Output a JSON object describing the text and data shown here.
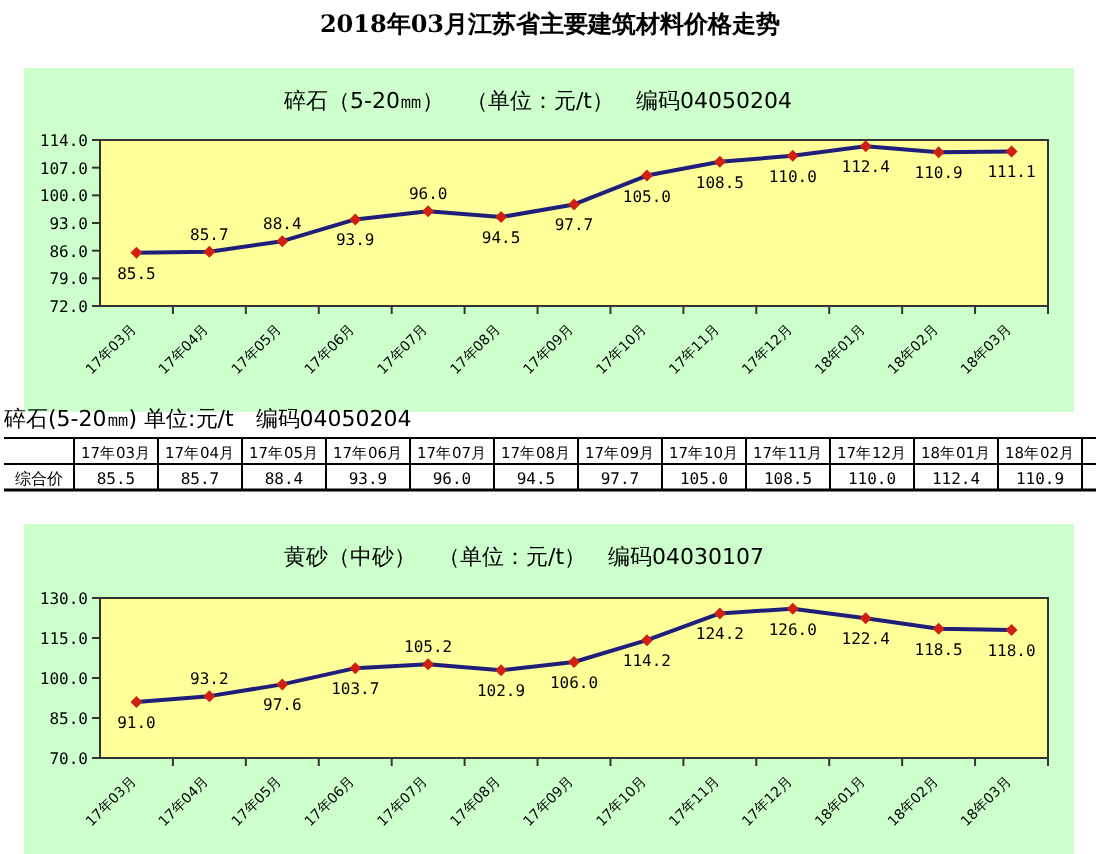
{
  "chart_data": [
    {
      "type": "line",
      "title": "2018年03月江苏省主要建筑材料价格走势",
      "subtitle": "碎石（5-20㎜）　（单位：元/t）　编码04050204",
      "categories": [
        "17年03月",
        "17年04月",
        "17年05月",
        "17年06月",
        "17年07月",
        "17年08月",
        "17年09月",
        "17年10月",
        "17年11月",
        "17年12月",
        "18年01月",
        "18年02月",
        "18年03月"
      ],
      "series": [
        {
          "color": "#1f1f7a",
          "values": [
            85.5,
            85.7,
            88.4,
            93.9,
            96.0,
            94.5,
            97.7,
            105.0,
            108.5,
            110.0,
            112.4,
            110.9,
            111.1
          ],
          "value_labels": [
            "85.5",
            "85.7",
            "88.4",
            "93.9",
            "96.0",
            "94.5",
            "97.7",
            "105.0",
            "108.5",
            "110.0",
            "112.4",
            "110.9",
            "111.1"
          ]
        }
      ],
      "marker": "diamond",
      "line_style": "solid",
      "ylim": [
        72,
        114
      ],
      "yticks": [
        {
          "value": 72,
          "label": "72.0"
        },
        {
          "value": 79,
          "label": "79.0"
        },
        {
          "value": 86,
          "label": "86.0"
        },
        {
          "value": 93,
          "label": "93.0"
        },
        {
          "value": 100,
          "label": "100.0"
        },
        {
          "value": 107,
          "label": "107.0"
        },
        {
          "value": 114,
          "label": "114.0"
        }
      ]
    },
    {
      "type": "other",
      "title": "碎石(5-20㎜) 单位:元/t　编码04050204",
      "categories": [
        "17年03月",
        "17年04月",
        "17年05月",
        "17年06月",
        "17年07月",
        "17年08月",
        "17年09月",
        "17年10月",
        "17年11月",
        "17年12月",
        "18年01月",
        "18年02月"
      ],
      "value_labels": [
        "85.5",
        "85.7",
        "88.4",
        "93.9",
        "96.0",
        "94.5",
        "97.7",
        "105.0",
        "108.5",
        "110.0",
        "112.4",
        "110.9"
      ],
      "annotations": [
        "综合价"
      ]
    },
    {
      "type": "line",
      "title": "黄砂（中砂）　（单位：元/t）　编码04030107",
      "categories": [
        "17年03月",
        "17年04月",
        "17年05月",
        "17年06月",
        "17年07月",
        "17年08月",
        "17年09月",
        "17年10月",
        "17年11月",
        "17年12月",
        "18年01月",
        "18年02月",
        "18年03月"
      ],
      "series": [
        {
          "color": "#1f1f7a",
          "values": [
            91.0,
            93.2,
            97.6,
            103.7,
            105.2,
            102.9,
            106.0,
            114.2,
            124.2,
            126.0,
            122.4,
            118.5,
            118.0
          ],
          "value_labels": [
            "91.0",
            "93.2",
            "97.6",
            "103.7",
            "105.2",
            "102.9",
            "106.0",
            "114.2",
            "124.2",
            "126.0",
            "122.4",
            "118.5",
            "118.0"
          ]
        }
      ],
      "marker": "diamond",
      "line_style": "solid",
      "ylim": [
        70,
        130
      ],
      "yticks": [
        {
          "value": 70,
          "label": "70.0"
        },
        {
          "value": 85,
          "label": "85.0"
        },
        {
          "value": 100,
          "label": "100.0"
        },
        {
          "value": 115,
          "label": "115.0"
        },
        {
          "value": 130,
          "label": "130.0"
        }
      ]
    }
  ]
}
